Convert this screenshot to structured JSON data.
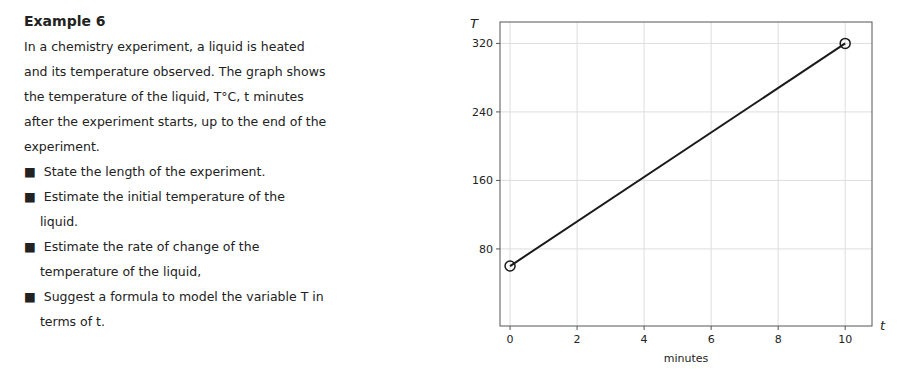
{
  "chart_data": {
    "type": "line",
    "title": "Example 6",
    "xlabel": "t",
    "ylabel": "T",
    "annotations": {
      "panel": [
        "In a chemistry experiment, a liquid is heated",
        "and its temperature observed. The graph shows",
        "the temperature of the liquid, T°C, t minutes",
        "after the experiment starts, up to the end of the",
        "experiment.",
        "■  State the length of the experiment.",
        "■  Estimate the initial temperature of the",
        "    liquid.",
        "■  Estimate the rate of change of the",
        "    temperature of the liquid,",
        "■  Suggest a formula to model the variable T in",
        "    terms of t."
      ],
      "x_axis": "minutes"
    },
    "xlim": [
      -0.3,
      10.8
    ],
    "ylim": [
      -10,
      345
    ],
    "xticks": [
      0,
      2,
      4,
      6,
      8,
      10
    ],
    "yticks": [
      80,
      160,
      240,
      320
    ],
    "grid": true,
    "series": [
      {
        "x": [
          0,
          10
        ],
        "values": [
          60,
          320
        ],
        "color": "#1a1a1a",
        "marker": "circle"
      }
    ]
  }
}
